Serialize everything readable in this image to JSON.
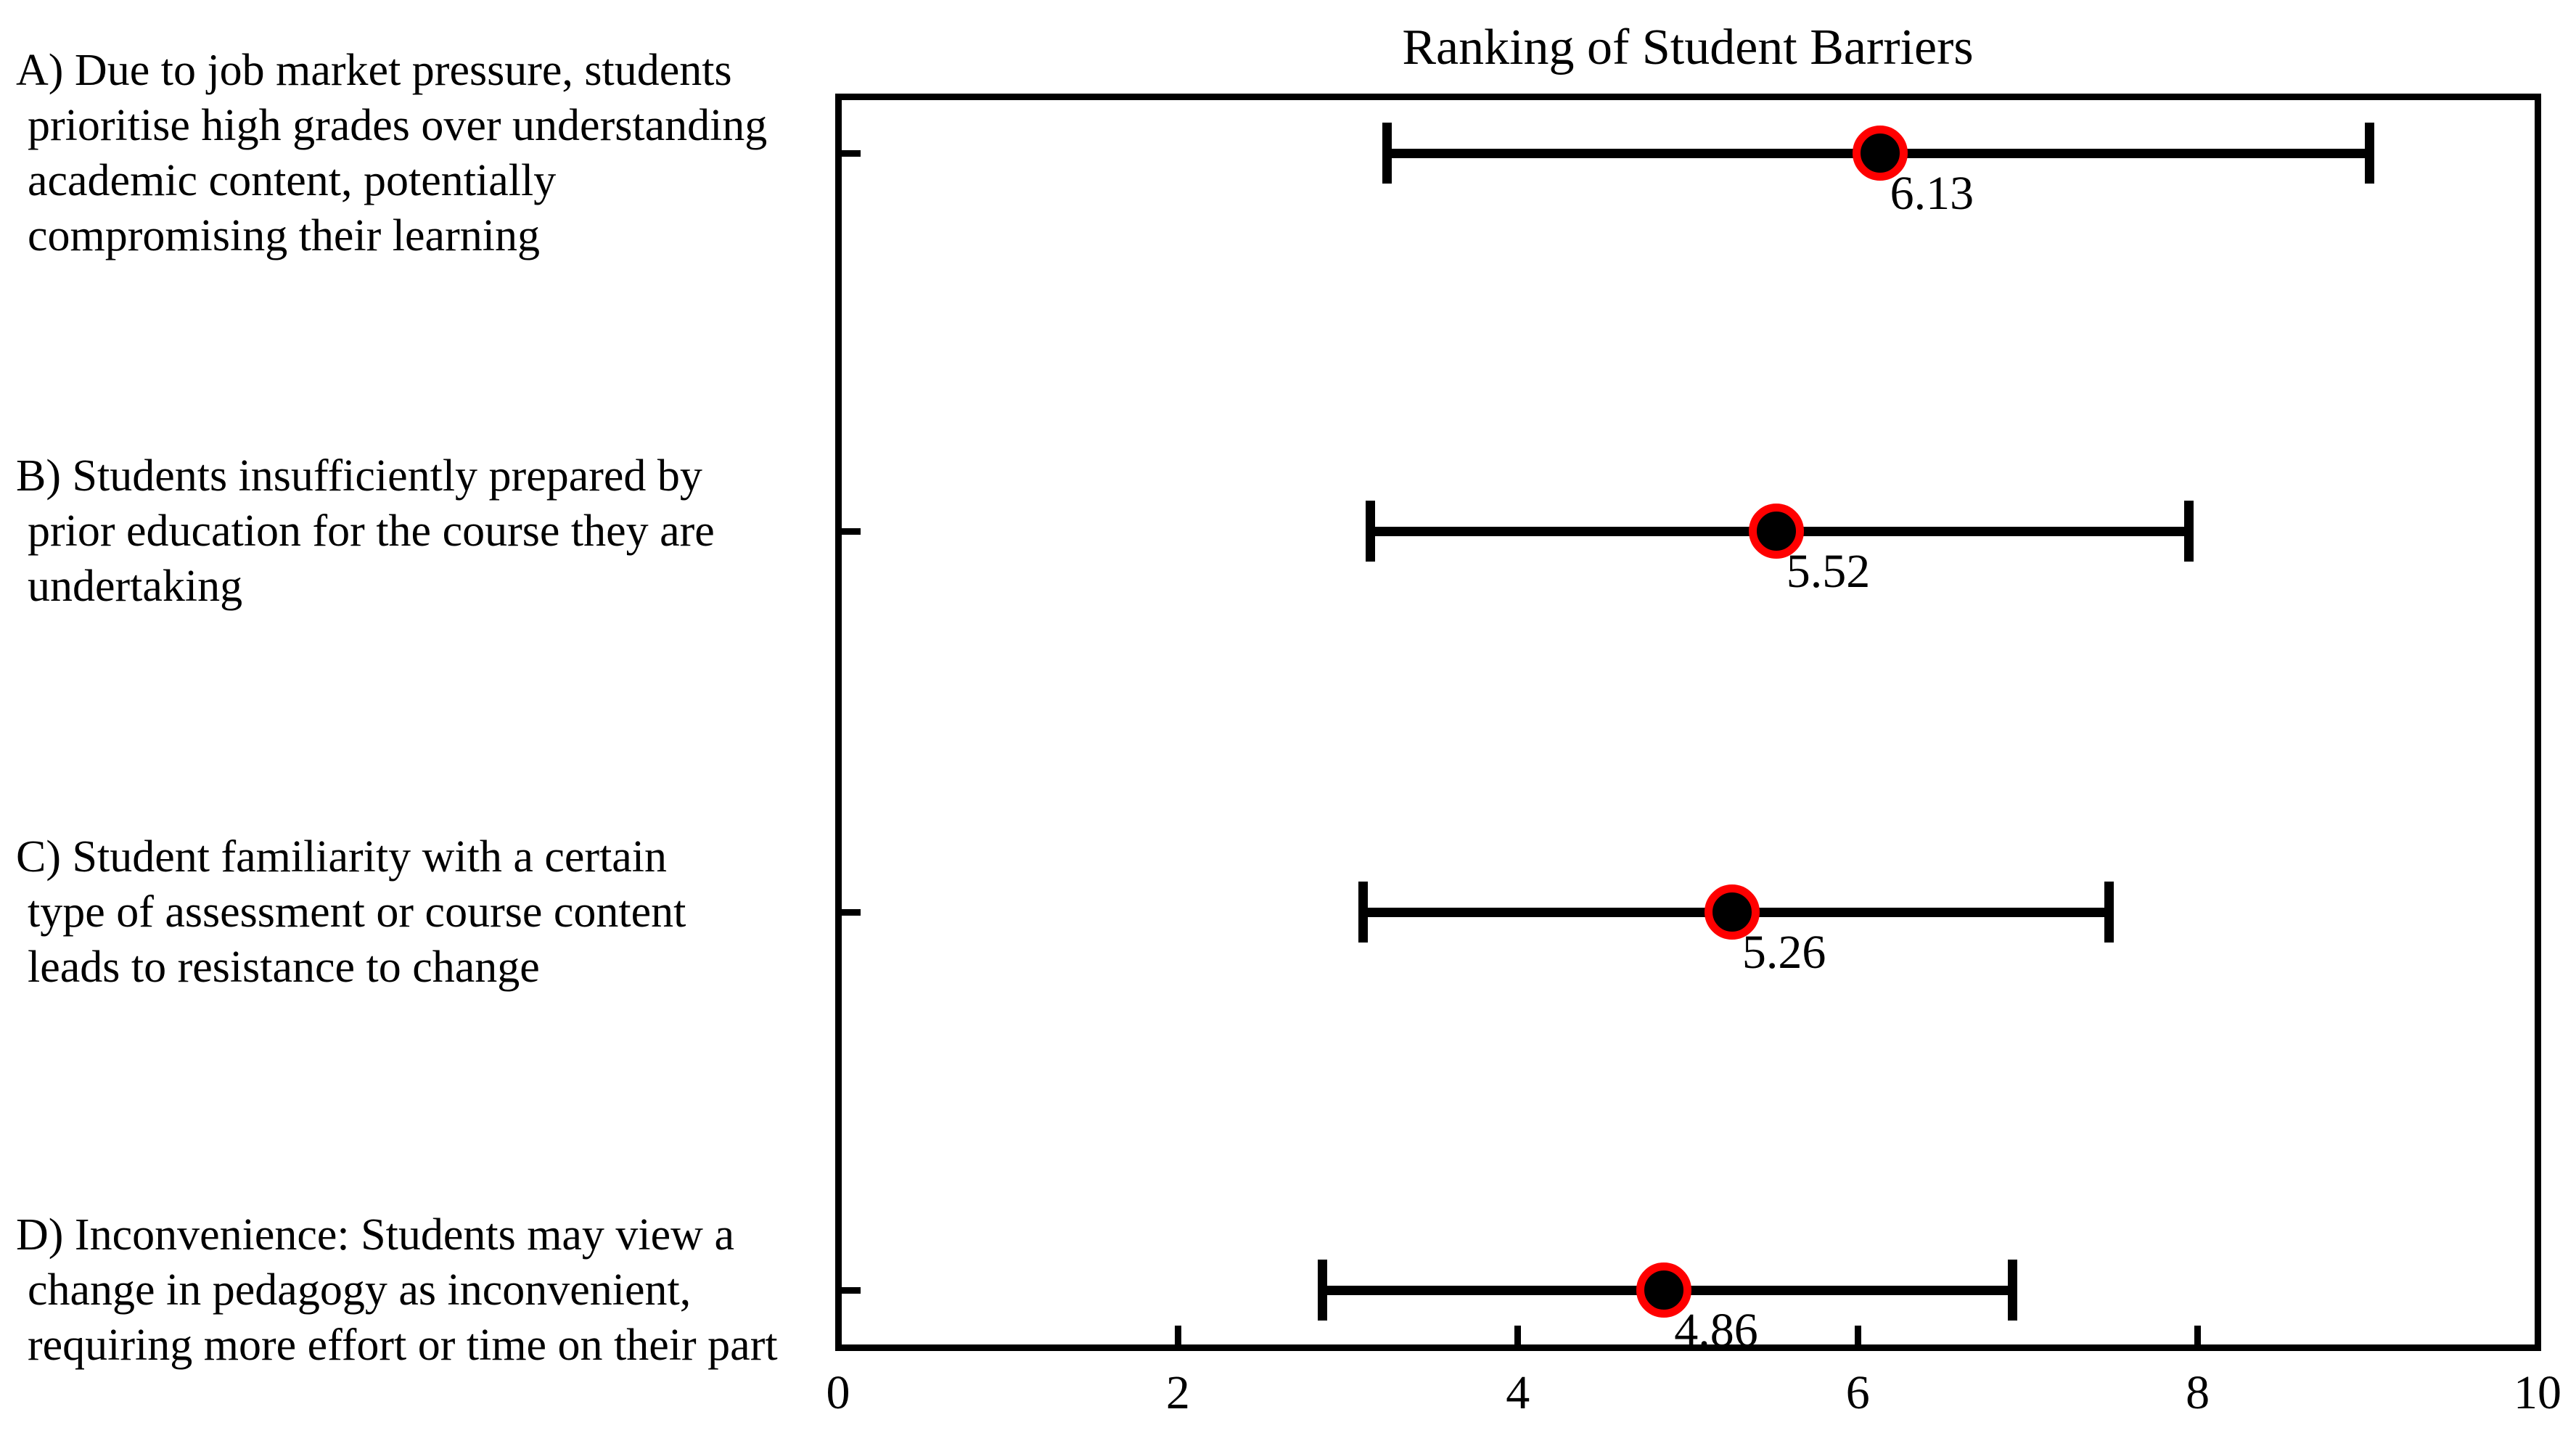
{
  "chart_data": {
    "type": "scatter",
    "subtype": "horizontal-dot-with-x-errorbars",
    "title": "Ranking of Student Barriers",
    "xlabel": "",
    "ylabel": "",
    "xlim": [
      0,
      10
    ],
    "x_ticks": [
      0,
      2,
      4,
      6,
      8,
      10
    ],
    "grid": false,
    "legend": "none",
    "marker_style": {
      "fill_color": "#000000",
      "ring_color": "#ff0000",
      "errorbar_color": "#000000"
    },
    "points": [
      {
        "category_lines": [
          "A) Due to job market pressure, students",
          "prioritise high grades over understanding",
          "academic content, potentially",
          "compromising their learning"
        ],
        "mean": 6.13,
        "value_label": "6.13",
        "err_low": 3.23,
        "err_high": 9.01
      },
      {
        "category_lines": [
          "B) Students insufficiently prepared by",
          "prior education for the course they are",
          "undertaking"
        ],
        "mean": 5.52,
        "value_label": "5.52",
        "err_low": 3.13,
        "err_high": 7.95
      },
      {
        "category_lines": [
          "C) Student familiarity with a certain",
          "type of assessment or course content",
          "leads to resistance to change"
        ],
        "mean": 5.26,
        "value_label": "5.26",
        "err_low": 3.09,
        "err_high": 7.48
      },
      {
        "category_lines": [
          "D) Inconvenience: Students may view a",
          "change in pedagogy as inconvenient,",
          "requiring more effort or time on their part"
        ],
        "mean": 4.86,
        "value_label": "4.86",
        "err_low": 2.85,
        "err_high": 6.91
      }
    ]
  }
}
